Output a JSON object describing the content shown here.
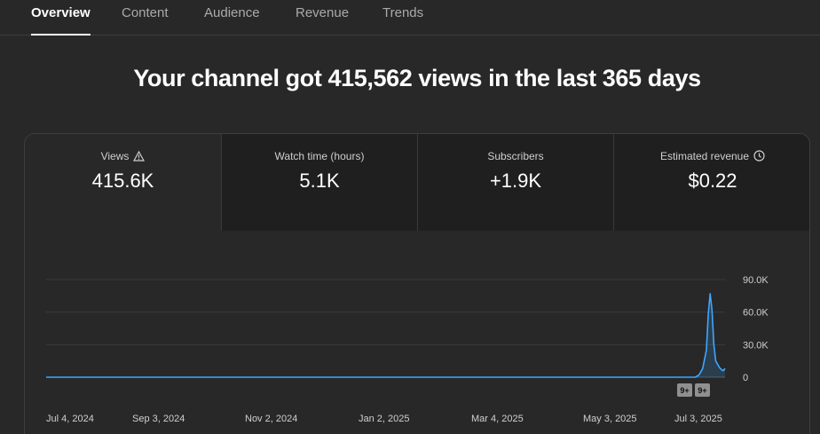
{
  "tabs": [
    {
      "label": "Overview",
      "active": true
    },
    {
      "label": "Content",
      "active": false
    },
    {
      "label": "Audience",
      "active": false
    },
    {
      "label": "Revenue",
      "active": false
    },
    {
      "label": "Trends",
      "active": false
    }
  ],
  "headline": "Your channel got 415,562 views in the last 365 days",
  "metrics": [
    {
      "label": "Views",
      "value": "415.6K",
      "icon": "warning-icon"
    },
    {
      "label": "Watch time (hours)",
      "value": "5.1K"
    },
    {
      "label": "Subscribers",
      "value": "+1.9K"
    },
    {
      "label": "Estimated revenue",
      "value": "$0.22",
      "icon": "clock-icon"
    }
  ],
  "chart": {
    "badges": [
      "9+",
      "9+"
    ]
  },
  "colors": {
    "accent_line": "#3ea6ff",
    "background": "#282828",
    "tile_background": "#1f1f1f"
  },
  "chart_data": {
    "type": "area",
    "x_labels": [
      "Jul 4, 2024",
      "Sep 3, 2024",
      "Nov 2, 2024",
      "Jan 2, 2025",
      "Mar 4, 2025",
      "May 3, 2025",
      "Jul 3, 2025"
    ],
    "y_tick_labels": [
      "0",
      "30.0K",
      "60.0K",
      "90.0K"
    ],
    "y_ticks": [
      0,
      30000,
      60000,
      90000
    ],
    "ylim": [
      0,
      90000
    ],
    "xlim": [
      "2024-07-04",
      "2025-07-03"
    ],
    "series": [
      {
        "values": [
          {
            "x": "2024-07-04",
            "y": 0
          },
          {
            "x": "2025-06-17",
            "y": 0
          },
          {
            "x": "2025-06-19",
            "y": 2000
          },
          {
            "x": "2025-06-21",
            "y": 8000
          },
          {
            "x": "2025-06-23",
            "y": 25000
          },
          {
            "x": "2025-06-24",
            "y": 58000
          },
          {
            "x": "2025-06-25",
            "y": 77000
          },
          {
            "x": "2025-06-26",
            "y": 62000
          },
          {
            "x": "2025-06-27",
            "y": 30000
          },
          {
            "x": "2025-06-28",
            "y": 15000
          },
          {
            "x": "2025-06-30",
            "y": 9000
          },
          {
            "x": "2025-07-01",
            "y": 7000
          },
          {
            "x": "2025-07-02",
            "y": 6000
          },
          {
            "x": "2025-07-03",
            "y": 8000
          }
        ]
      }
    ],
    "grid": true,
    "legend": "none"
  }
}
